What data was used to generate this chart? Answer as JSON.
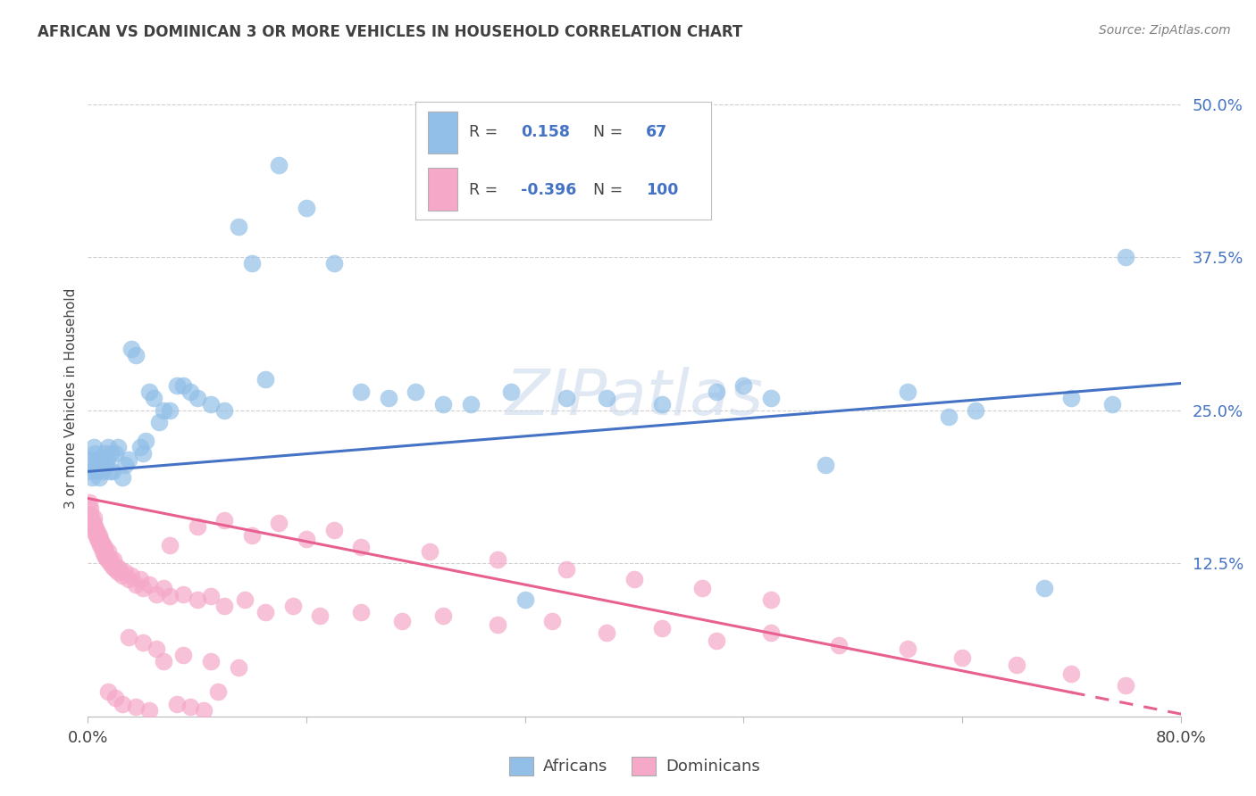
{
  "title": "AFRICAN VS DOMINICAN 3 OR MORE VEHICLES IN HOUSEHOLD CORRELATION CHART",
  "source": "Source: ZipAtlas.com",
  "ylabel": "3 or more Vehicles in Household",
  "xlim": [
    0.0,
    0.8
  ],
  "ylim": [
    0.0,
    0.52
  ],
  "yticks": [
    0.0,
    0.125,
    0.25,
    0.375,
    0.5
  ],
  "yticklabels": [
    "",
    "12.5%",
    "25.0%",
    "37.5%",
    "50.0%"
  ],
  "xticks": [
    0.0,
    0.16,
    0.32,
    0.48,
    0.64,
    0.8
  ],
  "xticklabels": [
    "0.0%",
    "",
    "",
    "",
    "",
    "80.0%"
  ],
  "african_color": "#92bfe8",
  "dominican_color": "#f5a8c8",
  "african_line_color": "#4472c4",
  "dominican_line_color": "#e86090",
  "watermark": "ZIPatlas",
  "background_color": "#ffffff",
  "grid_color": "#d0d0d0",
  "title_color": "#404040",
  "source_color": "#808080",
  "tick_label_color": "#4472c4",
  "legend_r_african": "0.158",
  "legend_n_african": "67",
  "legend_r_dominican": "-0.396",
  "legend_n_dominican": "100",
  "african_x": [
    0.001,
    0.002,
    0.003,
    0.004,
    0.004,
    0.005,
    0.006,
    0.007,
    0.008,
    0.009,
    0.01,
    0.011,
    0.012,
    0.013,
    0.014,
    0.015,
    0.016,
    0.017,
    0.018,
    0.02,
    0.022,
    0.025,
    0.027,
    0.03,
    0.032,
    0.035,
    0.038,
    0.04,
    0.042,
    0.045,
    0.048,
    0.052,
    0.055,
    0.06,
    0.065,
    0.07,
    0.075,
    0.08,
    0.09,
    0.1,
    0.11,
    0.12,
    0.13,
    0.14,
    0.16,
    0.18,
    0.2,
    0.22,
    0.24,
    0.26,
    0.28,
    0.31,
    0.35,
    0.38,
    0.42,
    0.46,
    0.5,
    0.54,
    0.6,
    0.65,
    0.7,
    0.72,
    0.75,
    0.76,
    0.63,
    0.48,
    0.32
  ],
  "african_y": [
    0.2,
    0.21,
    0.195,
    0.205,
    0.22,
    0.215,
    0.2,
    0.21,
    0.195,
    0.205,
    0.21,
    0.2,
    0.215,
    0.205,
    0.21,
    0.22,
    0.2,
    0.215,
    0.2,
    0.215,
    0.22,
    0.195,
    0.205,
    0.21,
    0.3,
    0.295,
    0.22,
    0.215,
    0.225,
    0.265,
    0.26,
    0.24,
    0.25,
    0.25,
    0.27,
    0.27,
    0.265,
    0.26,
    0.255,
    0.25,
    0.4,
    0.37,
    0.275,
    0.45,
    0.415,
    0.37,
    0.265,
    0.26,
    0.265,
    0.255,
    0.255,
    0.265,
    0.26,
    0.26,
    0.255,
    0.265,
    0.26,
    0.205,
    0.265,
    0.25,
    0.105,
    0.26,
    0.255,
    0.375,
    0.245,
    0.27,
    0.095
  ],
  "dominican_x": [
    0.001,
    0.002,
    0.002,
    0.003,
    0.003,
    0.004,
    0.004,
    0.005,
    0.005,
    0.006,
    0.006,
    0.007,
    0.007,
    0.008,
    0.008,
    0.009,
    0.009,
    0.01,
    0.01,
    0.011,
    0.011,
    0.012,
    0.012,
    0.013,
    0.013,
    0.014,
    0.015,
    0.015,
    0.016,
    0.017,
    0.018,
    0.019,
    0.02,
    0.021,
    0.022,
    0.023,
    0.025,
    0.027,
    0.03,
    0.032,
    0.035,
    0.038,
    0.04,
    0.045,
    0.05,
    0.055,
    0.06,
    0.07,
    0.08,
    0.09,
    0.1,
    0.115,
    0.13,
    0.15,
    0.17,
    0.2,
    0.23,
    0.26,
    0.3,
    0.34,
    0.38,
    0.42,
    0.46,
    0.5,
    0.55,
    0.6,
    0.64,
    0.68,
    0.72,
    0.76,
    0.06,
    0.08,
    0.1,
    0.12,
    0.14,
    0.16,
    0.18,
    0.2,
    0.25,
    0.3,
    0.35,
    0.4,
    0.45,
    0.5,
    0.03,
    0.04,
    0.05,
    0.07,
    0.09,
    0.11,
    0.015,
    0.02,
    0.025,
    0.035,
    0.045,
    0.055,
    0.065,
    0.075,
    0.085,
    0.095
  ],
  "dominican_y": [
    0.175,
    0.165,
    0.17,
    0.16,
    0.155,
    0.158,
    0.162,
    0.15,
    0.155,
    0.148,
    0.152,
    0.145,
    0.15,
    0.143,
    0.148,
    0.14,
    0.145,
    0.138,
    0.142,
    0.135,
    0.14,
    0.132,
    0.138,
    0.13,
    0.135,
    0.128,
    0.13,
    0.135,
    0.125,
    0.128,
    0.122,
    0.128,
    0.12,
    0.122,
    0.118,
    0.12,
    0.115,
    0.118,
    0.112,
    0.115,
    0.108,
    0.112,
    0.105,
    0.108,
    0.1,
    0.105,
    0.098,
    0.1,
    0.095,
    0.098,
    0.09,
    0.095,
    0.085,
    0.09,
    0.082,
    0.085,
    0.078,
    0.082,
    0.075,
    0.078,
    0.068,
    0.072,
    0.062,
    0.068,
    0.058,
    0.055,
    0.048,
    0.042,
    0.035,
    0.025,
    0.14,
    0.155,
    0.16,
    0.148,
    0.158,
    0.145,
    0.152,
    0.138,
    0.135,
    0.128,
    0.12,
    0.112,
    0.105,
    0.095,
    0.065,
    0.06,
    0.055,
    0.05,
    0.045,
    0.04,
    0.02,
    0.015,
    0.01,
    0.008,
    0.005,
    0.045,
    0.01,
    0.008,
    0.005,
    0.02
  ]
}
